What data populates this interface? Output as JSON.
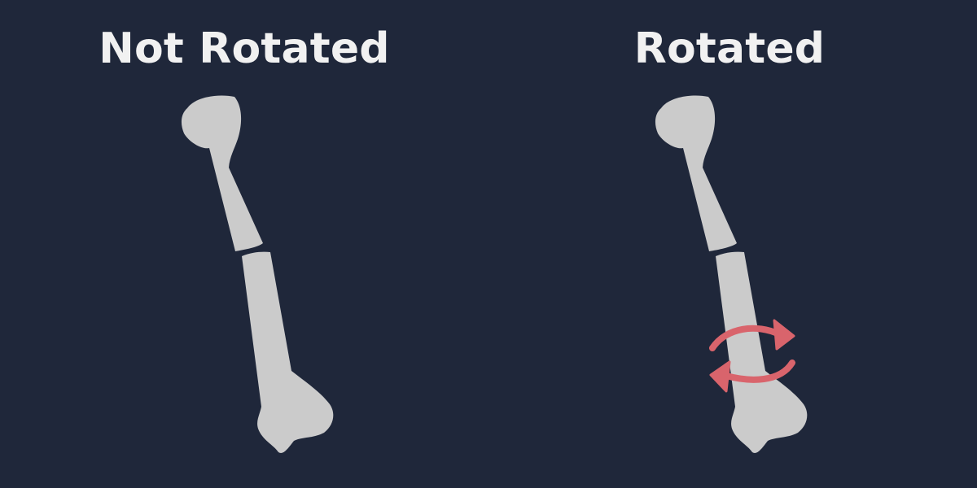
{
  "panels": {
    "left": {
      "title": "Not Rotated"
    },
    "right": {
      "title": "Rotated"
    }
  },
  "colors": {
    "background": "#1f273a",
    "bone": "#cbcbcb",
    "arrow": "#d9646c",
    "title": "#f1f1f1"
  },
  "icons": {
    "rotation": "curved-rotation-arrows-icon"
  }
}
